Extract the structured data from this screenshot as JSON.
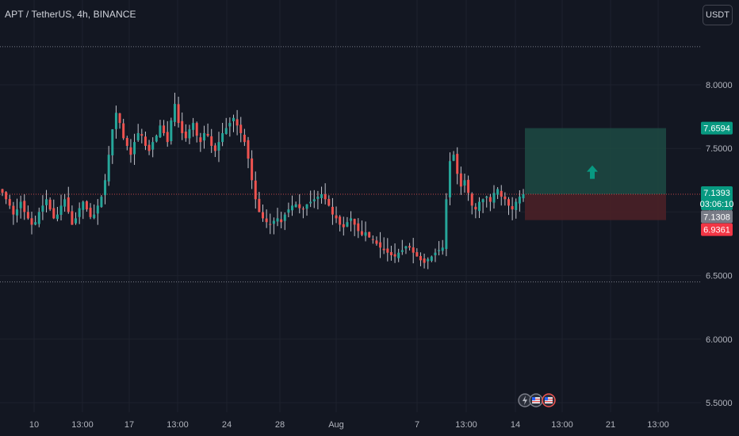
{
  "header": {
    "symbol_title": "APT / TetherUS, 4h, BINANCE",
    "currency_button": "USDT"
  },
  "colors": {
    "background": "#131722",
    "up": "#26a69a",
    "down": "#ef5350",
    "grid": "#1e222d",
    "axis_text": "#b2b5be",
    "target_zone": "#1d4a43",
    "stop_zone": "#4a2027"
  },
  "chart_data": {
    "type": "candlestick",
    "symbol": "APT / TetherUS",
    "interval": "4h",
    "exchange": "BINANCE",
    "x_ticks": [
      "10",
      "13:00",
      "17",
      "13:00",
      "24",
      "28",
      "Aug",
      "7",
      "13:00",
      "14",
      "13:00",
      "21",
      "13:00"
    ],
    "y_ticks": [
      "8.0000",
      "7.5000",
      "7.0000",
      "6.5000",
      "6.0000",
      "5.5000"
    ],
    "y_tick_values": [
      8.0,
      7.5,
      7.0,
      6.5,
      6.0,
      5.5
    ],
    "ylim": [
      5.45,
      8.35
    ],
    "horizontal_levels": [
      8.3,
      6.45
    ],
    "current_price": {
      "value": 7.1393,
      "label": "7.1393",
      "countdown": "03:06:10"
    },
    "price_tags": [
      {
        "label": "7.6594",
        "value": 7.6594,
        "color": "#089981"
      },
      {
        "label": "7.1308",
        "value": 7.1308,
        "color": "#787b86"
      },
      {
        "label": "6.9361",
        "value": 6.9361,
        "color": "#f23645"
      }
    ],
    "position": {
      "type": "long",
      "entry": 7.1393,
      "target": 7.6594,
      "stop": 6.9361
    },
    "closes": [
      7.15,
      7.1,
      7.05,
      6.98,
      7.02,
      7.08,
      7.0,
      6.95,
      6.9,
      6.92,
      7.0,
      7.05,
      7.1,
      7.02,
      6.95,
      6.98,
      7.05,
      7.1,
      7.0,
      6.9,
      6.95,
      7.03,
      7.08,
      7.02,
      6.96,
      6.98,
      7.05,
      7.12,
      7.25,
      7.45,
      7.65,
      7.78,
      7.7,
      7.58,
      7.52,
      7.45,
      7.55,
      7.62,
      7.6,
      7.52,
      7.48,
      7.55,
      7.6,
      7.68,
      7.62,
      7.55,
      7.72,
      7.85,
      7.7,
      7.62,
      7.58,
      7.65,
      7.7,
      7.6,
      7.55,
      7.62,
      7.6,
      7.52,
      7.48,
      7.55,
      7.62,
      7.66,
      7.7,
      7.74,
      7.68,
      7.62,
      7.55,
      7.42,
      7.25,
      7.1,
      7.0,
      6.95,
      6.92,
      6.9,
      6.93,
      6.95,
      6.92,
      6.98,
      7.02,
      7.05,
      7.06,
      7.03,
      7.02,
      7.06,
      7.08,
      7.1,
      7.12,
      7.14,
      7.1,
      7.05,
      6.98,
      6.95,
      6.9,
      6.88,
      6.92,
      6.95,
      6.9,
      6.85,
      6.82,
      6.84,
      6.8,
      6.78,
      6.75,
      6.72,
      6.7,
      6.68,
      6.66,
      6.65,
      6.68,
      6.7,
      6.73,
      6.72,
      6.68,
      6.65,
      6.62,
      6.6,
      6.63,
      6.65,
      6.68,
      6.7,
      6.72,
      7.1,
      7.4,
      7.45,
      7.3,
      7.2,
      7.25,
      7.15,
      7.05,
      7.02,
      7.08,
      7.1,
      7.12,
      7.08,
      7.15,
      7.18,
      7.12,
      7.1,
      7.05,
      7.02,
      7.08,
      7.12,
      7.14
    ]
  }
}
